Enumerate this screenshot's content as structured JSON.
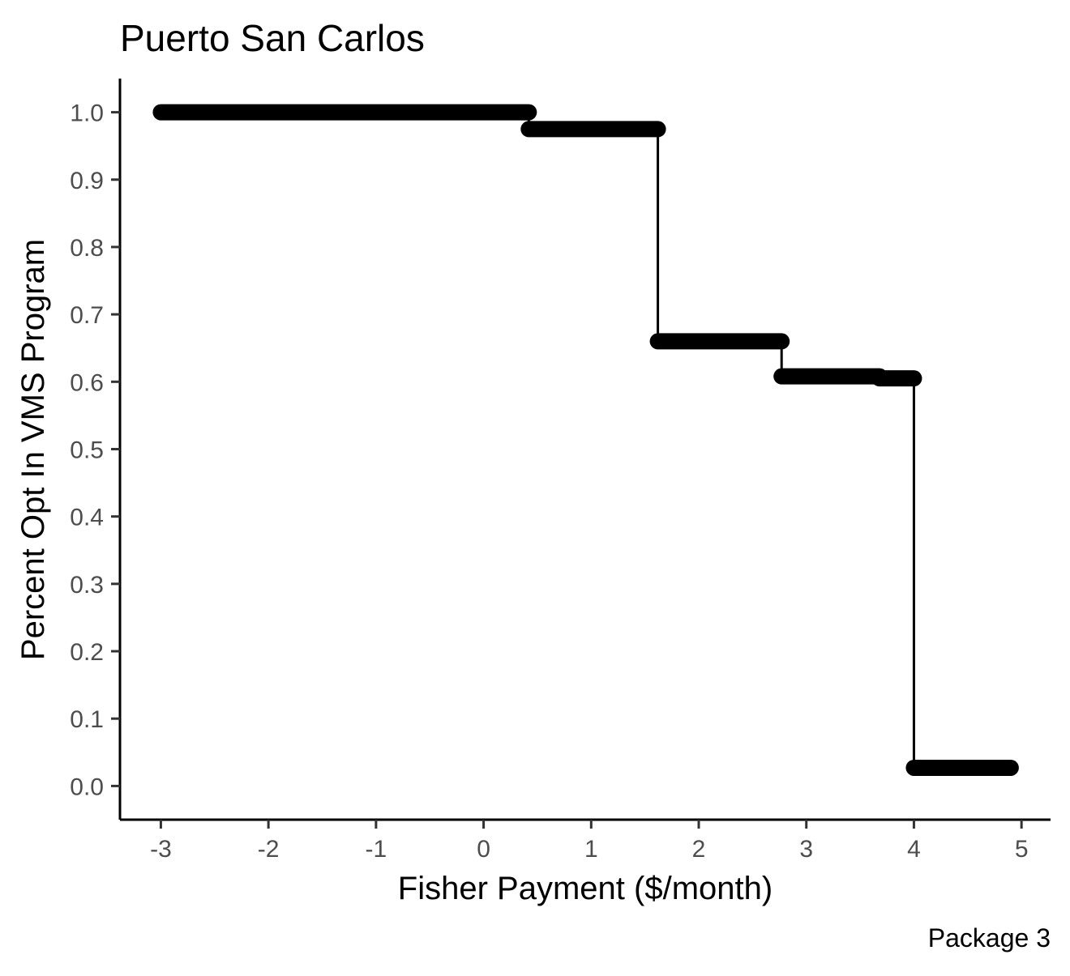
{
  "chart_data": {
    "type": "line",
    "title": "Puerto San Carlos",
    "xlabel": "Fisher Payment ($/month)",
    "ylabel": "Percent Opt In VMS Program",
    "caption": "Package 3",
    "xlim": [
      -3.38,
      5.27
    ],
    "ylim": [
      -0.05,
      1.05
    ],
    "x_ticks": [
      -3,
      -2,
      -1,
      0,
      1,
      2,
      3,
      4,
      5
    ],
    "y_ticks": [
      0.0,
      0.1,
      0.2,
      0.3,
      0.4,
      0.5,
      0.6,
      0.7,
      0.8,
      0.9,
      1.0
    ],
    "x_tick_labels": [
      "-3",
      "-2",
      "-1",
      "0",
      "1",
      "2",
      "3",
      "4",
      "5"
    ],
    "y_tick_labels": [
      "0.0",
      "0.1",
      "0.2",
      "0.3",
      "0.4",
      "0.5",
      "0.6",
      "0.7",
      "0.8",
      "0.9",
      "1.0"
    ],
    "grid": false,
    "color": "#000000",
    "series": [
      {
        "values_description_free": true,
        "steps": [
          {
            "x_start": -3.0,
            "x_end": 0.42,
            "y": 1.0
          },
          {
            "x_start": 0.42,
            "x_end": 1.62,
            "y": 0.975
          },
          {
            "x_start": 1.62,
            "x_end": 2.77,
            "y": 0.66
          },
          {
            "x_start": 2.77,
            "x_end": 3.68,
            "y": 0.608
          },
          {
            "x_start": 3.68,
            "x_end": 4.0,
            "y": 0.605
          },
          {
            "x_start": 4.0,
            "x_end": 4.9,
            "y": 0.027
          }
        ]
      }
    ]
  }
}
